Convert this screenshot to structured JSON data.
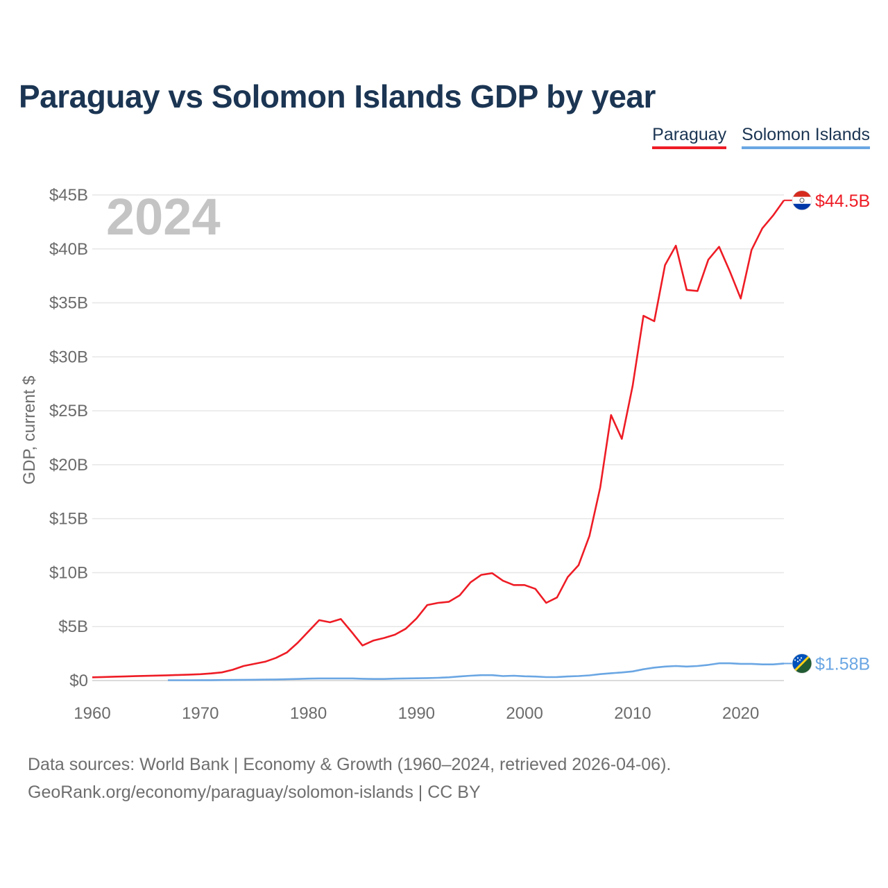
{
  "title": "Paraguay vs Solomon Islands GDP by year",
  "legend": [
    {
      "name": "Paraguay",
      "color": "#ee1c25"
    },
    {
      "name": "Solomon Islands",
      "color": "#6aa6e3"
    }
  ],
  "footer": {
    "line1": "Data sources: World Bank | Economy & Growth (1960–2024, retrieved 2026-04-06).",
    "line2": "GeoRank.org/economy/paraguay/solomon-islands | CC BY"
  },
  "chart_data": {
    "type": "line",
    "title": "Paraguay vs Solomon Islands GDP by year",
    "year_label": "2024",
    "xlabel": "",
    "ylabel": "GDP, current $",
    "xlim": [
      1960,
      2024
    ],
    "ylim": [
      0,
      45
    ],
    "x_ticks": [
      1960,
      1970,
      1980,
      1990,
      2000,
      2010,
      2020
    ],
    "x_tick_labels": [
      "1960",
      "1970",
      "1980",
      "1990",
      "2000",
      "2010",
      "2020"
    ],
    "y_ticks": [
      0,
      5,
      10,
      15,
      20,
      25,
      30,
      35,
      40,
      45
    ],
    "y_tick_labels": [
      "$0",
      "$5B",
      "$10B",
      "$15B",
      "$20B",
      "$25B",
      "$30B",
      "$35B",
      "$40B",
      "$45B"
    ],
    "grid": true,
    "series": [
      {
        "name": "Paraguay",
        "color": "#ee1c25",
        "end_label": "$44.5B",
        "x": [
          1960,
          1961,
          1962,
          1963,
          1964,
          1965,
          1966,
          1967,
          1968,
          1969,
          1970,
          1971,
          1972,
          1973,
          1974,
          1975,
          1976,
          1977,
          1978,
          1979,
          1980,
          1981,
          1982,
          1983,
          1984,
          1985,
          1986,
          1987,
          1988,
          1989,
          1990,
          1991,
          1992,
          1993,
          1994,
          1995,
          1996,
          1997,
          1998,
          1999,
          2000,
          2001,
          2002,
          2003,
          2004,
          2005,
          2006,
          2007,
          2008,
          2009,
          2010,
          2011,
          2012,
          2013,
          2014,
          2015,
          2016,
          2017,
          2018,
          2019,
          2020,
          2021,
          2022,
          2023,
          2024
        ],
        "values": [
          0.3,
          0.33,
          0.36,
          0.38,
          0.41,
          0.44,
          0.46,
          0.49,
          0.52,
          0.55,
          0.59,
          0.66,
          0.76,
          1.0,
          1.35,
          1.55,
          1.75,
          2.1,
          2.6,
          3.5,
          4.55,
          5.6,
          5.4,
          5.7,
          4.5,
          3.25,
          3.7,
          3.95,
          4.25,
          4.8,
          5.75,
          7.0,
          7.2,
          7.3,
          7.9,
          9.1,
          9.8,
          9.95,
          9.25,
          8.85,
          8.85,
          8.5,
          7.2,
          7.7,
          9.6,
          10.7,
          13.4,
          17.9,
          24.6,
          22.4,
          27.3,
          33.8,
          33.3,
          38.5,
          40.3,
          36.2,
          36.1,
          39.0,
          40.2,
          37.9,
          35.4,
          39.9,
          41.9,
          43.1,
          44.5
        ]
      },
      {
        "name": "Solomon Islands",
        "color": "#6aa6e3",
        "end_label": "$1.58B",
        "x": [
          1967,
          1968,
          1969,
          1970,
          1971,
          1972,
          1973,
          1974,
          1975,
          1976,
          1977,
          1978,
          1979,
          1980,
          1981,
          1982,
          1983,
          1984,
          1985,
          1986,
          1987,
          1988,
          1989,
          1990,
          1991,
          1992,
          1993,
          1994,
          1995,
          1996,
          1997,
          1998,
          1999,
          2000,
          2001,
          2002,
          2003,
          2004,
          2005,
          2006,
          2007,
          2008,
          2009,
          2010,
          2011,
          2012,
          2013,
          2014,
          2015,
          2016,
          2017,
          2018,
          2019,
          2020,
          2021,
          2022,
          2023,
          2024
        ],
        "values": [
          0.03,
          0.03,
          0.03,
          0.04,
          0.04,
          0.05,
          0.06,
          0.07,
          0.08,
          0.09,
          0.1,
          0.12,
          0.15,
          0.18,
          0.2,
          0.2,
          0.2,
          0.2,
          0.17,
          0.15,
          0.15,
          0.18,
          0.2,
          0.21,
          0.23,
          0.26,
          0.3,
          0.38,
          0.45,
          0.5,
          0.5,
          0.42,
          0.45,
          0.4,
          0.37,
          0.32,
          0.33,
          0.38,
          0.42,
          0.48,
          0.6,
          0.68,
          0.75,
          0.85,
          1.05,
          1.2,
          1.3,
          1.35,
          1.3,
          1.35,
          1.45,
          1.6,
          1.6,
          1.55,
          1.55,
          1.5,
          1.5,
          1.58
        ]
      }
    ]
  }
}
